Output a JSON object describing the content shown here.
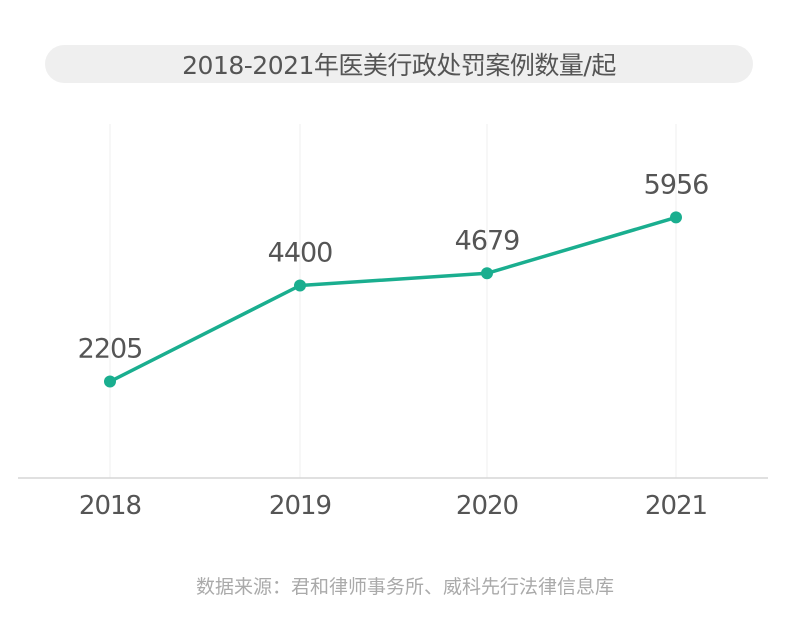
{
  "chart_data": {
    "type": "line",
    "title": "2018-2021年医美行政处罚案例数量/起",
    "categories": [
      "2018",
      "2019",
      "2020",
      "2021"
    ],
    "values": [
      2205,
      4400,
      4679,
      5956
    ],
    "data_labels": [
      "2205",
      "4400",
      "4679",
      "5956"
    ],
    "xlabel": "",
    "ylabel": "",
    "ylim": [
      0,
      8000
    ],
    "grid": "vertical",
    "line_color": "#1aae8f"
  },
  "source": "数据来源：君和律师事务所、威科先行法律信息库"
}
